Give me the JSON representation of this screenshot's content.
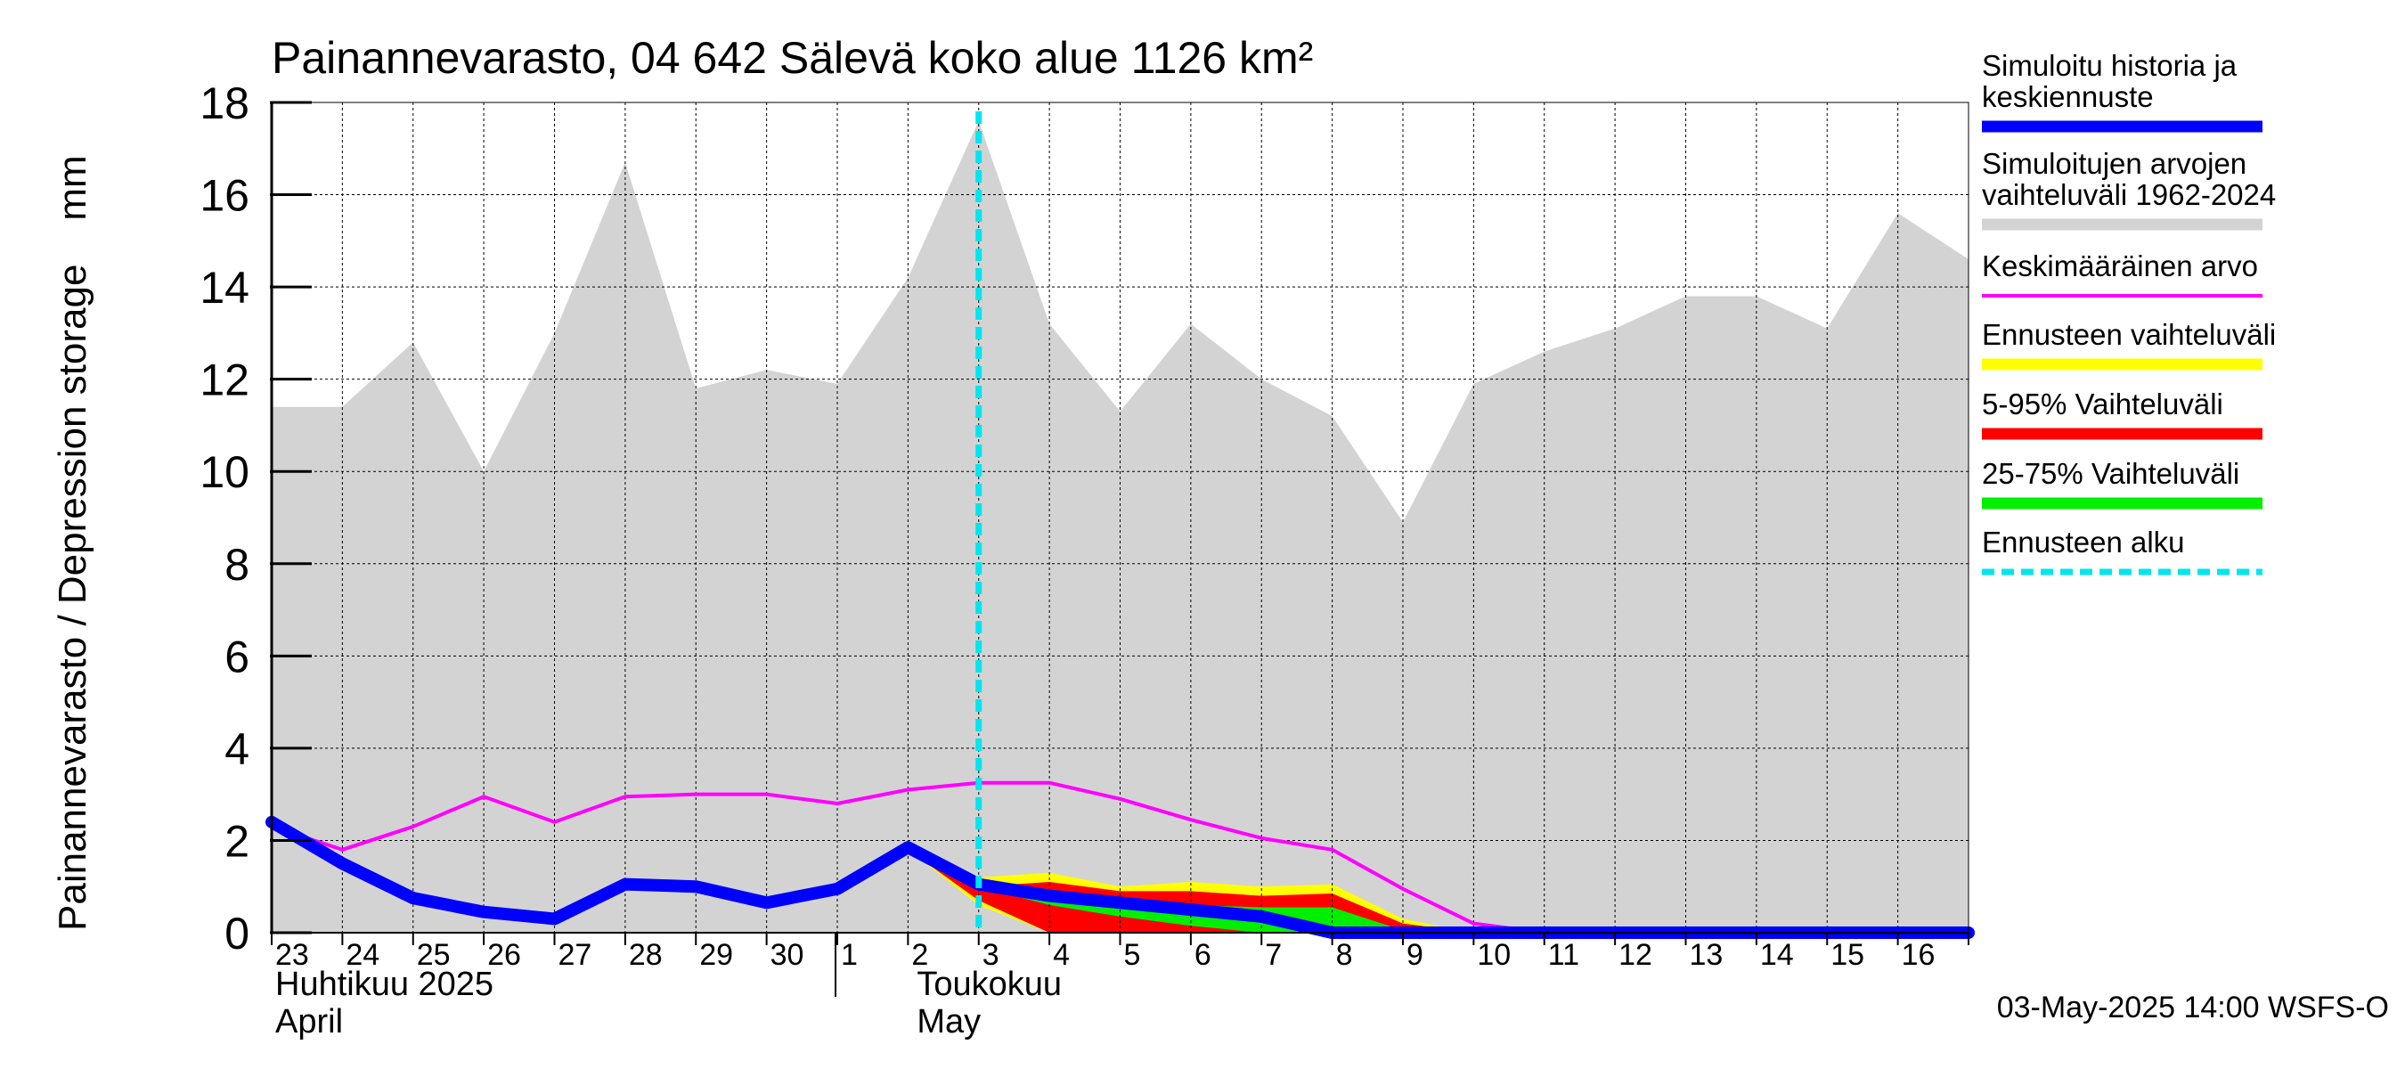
{
  "chart_data": {
    "type": "area",
    "title": "Painannevarasto, 04 642 Sälevä koko alue 1126 km²",
    "ylabel": "Painannevarasto / Depression storage    mm",
    "ylim": [
      0,
      18
    ],
    "yticks": [
      0,
      2,
      4,
      6,
      8,
      10,
      12,
      14,
      16,
      18
    ],
    "grid": true,
    "legend_position": "right",
    "x_dates": [
      "2025-04-23",
      "2025-04-24",
      "2025-04-25",
      "2025-04-26",
      "2025-04-27",
      "2025-04-28",
      "2025-04-29",
      "2025-04-30",
      "2025-05-01",
      "2025-05-02",
      "2025-05-03",
      "2025-05-04",
      "2025-05-05",
      "2025-05-06",
      "2025-05-07",
      "2025-05-08",
      "2025-05-09",
      "2025-05-10",
      "2025-05-11",
      "2025-05-12",
      "2025-05-13",
      "2025-05-14",
      "2025-05-15",
      "2025-05-16",
      "2025-05-17"
    ],
    "x_tick_labels": [
      "23",
      "24",
      "25",
      "26",
      "27",
      "28",
      "29",
      "30",
      "1",
      "2",
      "3",
      "4",
      "5",
      "6",
      "7",
      "8",
      "9",
      "10",
      "11",
      "12",
      "13",
      "14",
      "15",
      "16"
    ],
    "month_labels": [
      {
        "fi": "Huhtikuu  2025",
        "en": "April"
      },
      {
        "fi": "Toukokuu",
        "en": "May"
      }
    ],
    "forecast_start": "2025-05-03",
    "series": [
      {
        "name": "Simuloitujen arvojen vaihteluväli 1962-2024",
        "kind": "band",
        "color": "#d3d3d3",
        "upper": [
          11.4,
          11.4,
          12.8,
          10.0,
          13.0,
          16.7,
          11.8,
          12.2,
          11.9,
          14.2,
          17.6,
          13.2,
          11.3,
          13.2,
          12.0,
          11.2,
          8.9,
          11.9,
          12.6,
          13.1,
          13.8,
          13.8,
          13.1,
          15.6,
          14.6
        ],
        "lower": [
          0,
          0,
          0,
          0,
          0,
          0,
          0,
          0,
          0,
          0,
          0,
          0,
          0,
          0,
          0,
          0,
          0,
          0,
          0,
          0,
          0,
          0,
          0,
          0,
          0
        ]
      },
      {
        "name": "Ennusteen vaihteluväli",
        "kind": "band",
        "color": "#ffff00",
        "x_index": [
          9,
          10,
          11,
          12,
          13,
          14,
          15,
          16,
          17
        ],
        "upper": [
          1.8,
          1.2,
          1.3,
          1.0,
          1.1,
          1.0,
          1.05,
          0.3,
          0.0
        ],
        "lower": [
          1.8,
          0.6,
          0.0,
          0.0,
          0.0,
          0.0,
          0.0,
          0.0,
          0.0
        ]
      },
      {
        "name": "5-95% Vaihteluväli",
        "kind": "band",
        "color": "#ff0000",
        "x_index": [
          9,
          10,
          11,
          12,
          13,
          14,
          15,
          16,
          17
        ],
        "upper": [
          1.8,
          1.0,
          1.1,
          0.9,
          0.9,
          0.8,
          0.85,
          0.2,
          0.0
        ],
        "lower": [
          1.8,
          0.7,
          0.0,
          0.0,
          0.0,
          0.0,
          0.0,
          0.0,
          0.0
        ]
      },
      {
        "name": "25-75% Vaihteluväli",
        "kind": "band",
        "color": "#00ee00",
        "x_index": [
          9,
          10,
          11,
          12,
          13,
          14,
          15,
          16,
          17
        ],
        "upper": [
          1.8,
          1.0,
          0.7,
          0.6,
          0.6,
          0.55,
          0.55,
          0.05,
          0.0
        ],
        "lower": [
          1.8,
          1.0,
          0.6,
          0.35,
          0.15,
          0.0,
          0.0,
          0.0,
          0.0
        ]
      },
      {
        "name": "Keskimääräinen arvo",
        "kind": "line",
        "color": "#ff00ff",
        "values": [
          2.3,
          1.8,
          2.3,
          2.95,
          2.4,
          2.95,
          3.0,
          3.0,
          2.8,
          3.1,
          3.25,
          3.25,
          2.9,
          2.45,
          2.05,
          1.8,
          0.95,
          0.2,
          0.0,
          0.0,
          0.0,
          0.0,
          0.0,
          0.0,
          0.0
        ]
      },
      {
        "name": "Simuloitu historia ja keskiennuste",
        "kind": "line",
        "color": "#0000ff",
        "values": [
          2.4,
          1.5,
          0.75,
          0.45,
          0.3,
          1.05,
          1.0,
          0.65,
          0.95,
          1.85,
          1.05,
          0.8,
          0.65,
          0.5,
          0.35,
          0.0,
          0.0,
          0.0,
          0.0,
          0.0,
          0.0,
          0.0,
          0.0,
          0.0,
          0.0
        ]
      }
    ]
  },
  "legend": {
    "items": [
      {
        "label": "Simuloitu historia ja keskiennuste",
        "color": "#0000ff",
        "style": "thick"
      },
      {
        "label": "Simuloitujen arvojen vaihteluväli 1962-2024",
        "color": "#d3d3d3",
        "style": "thick"
      },
      {
        "label": "Keskimääräinen arvo",
        "color": "#ff00ff",
        "style": "thin"
      },
      {
        "label": "Ennusteen vaihteluväli",
        "color": "#ffff00",
        "style": "thick"
      },
      {
        "label": "5-95% Vaihteluväli",
        "color": "#ff0000",
        "style": "thick"
      },
      {
        "label": "25-75% Vaihteluväli",
        "color": "#00ee00",
        "style": "thick"
      },
      {
        "label": "Ennusteen alku",
        "color": "#00e5ee",
        "style": "dashed"
      }
    ]
  },
  "footer": {
    "timestamp": "03-May-2025 14:00 WSFS-O"
  }
}
